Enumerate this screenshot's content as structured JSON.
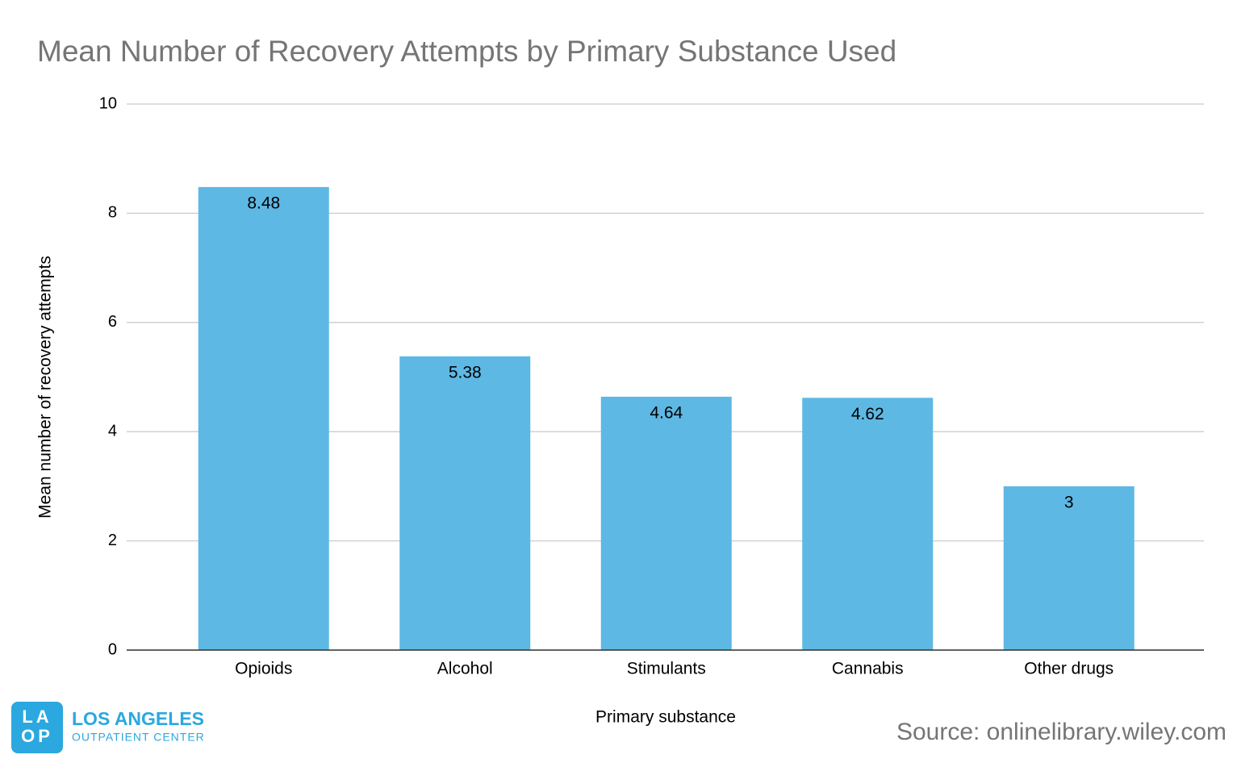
{
  "chart_data": {
    "type": "bar",
    "title": "Mean Number of Recovery Attempts by Primary Substance Used",
    "x_label": "Primary substance",
    "y_label": "Mean number of recovery attempts",
    "categories": [
      "Opioids",
      "Alcohol",
      "Stimulants",
      "Cannabis",
      "Other drugs"
    ],
    "values": [
      8.48,
      5.38,
      4.64,
      4.62,
      3
    ],
    "color": "#5db8e4",
    "ylim": [
      0,
      10
    ],
    "yticks": [
      0,
      2,
      4,
      6,
      8,
      10
    ],
    "grid": true,
    "source": "Source: onlinelibrary.wiley.com",
    "logo": {
      "mark_top": "LA",
      "mark_bottom": "OP",
      "name": "LOS ANGELES",
      "subname": "OUTPATIENT CENTER"
    }
  }
}
